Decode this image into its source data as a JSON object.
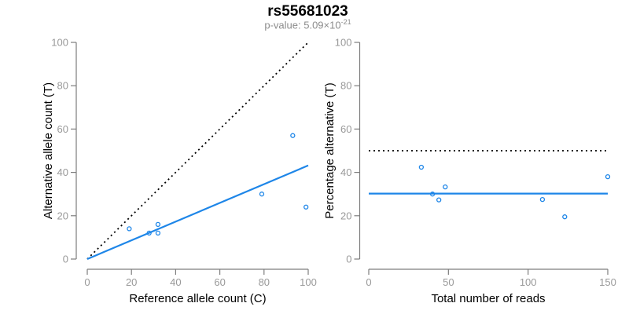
{
  "header": {
    "title": "rs55681023",
    "subtitle_prefix": "p-value: 5.09×10",
    "subtitle_exponent": "-21"
  },
  "colors": {
    "accent_blue": "#1e86e8",
    "dotted_black": "#000000",
    "axis_gray": "#7d7d7d",
    "tick_label_gray": "#999999",
    "text_black": "#000000",
    "subtitle_gray": "#8c8c8c",
    "background": "#ffffff"
  },
  "chart_data": [
    {
      "type": "scatter",
      "panel": "left",
      "xlabel": "Reference allele count (C)",
      "ylabel": "Alternative allele count (T)",
      "xlim": [
        0,
        100
      ],
      "ylim": [
        0,
        100
      ],
      "xticks": [
        0,
        20,
        40,
        60,
        80,
        100
      ],
      "yticks": [
        0,
        20,
        40,
        60,
        80,
        100
      ],
      "grid": false,
      "points": [
        {
          "x": 19,
          "y": 14
        },
        {
          "x": 28,
          "y": 12
        },
        {
          "x": 32,
          "y": 12
        },
        {
          "x": 32,
          "y": 16
        },
        {
          "x": 79,
          "y": 30
        },
        {
          "x": 93,
          "y": 57
        },
        {
          "x": 99,
          "y": 24
        }
      ],
      "lines": [
        {
          "name": "identity-line",
          "style": "dotted",
          "color_key": "dotted_black",
          "x1": 0,
          "y1": 0,
          "x2": 100,
          "y2": 100
        },
        {
          "name": "fit-line",
          "style": "solid",
          "color_key": "accent_blue",
          "x1": 0,
          "y1": 0,
          "x2": 100,
          "y2": 43.2
        }
      ]
    },
    {
      "type": "scatter",
      "panel": "right",
      "xlabel": "Total number of reads",
      "ylabel": "Percentage alternative (T)",
      "xlim": [
        0,
        150
      ],
      "ylim": [
        0,
        100
      ],
      "xticks": [
        0,
        50,
        100,
        150
      ],
      "yticks": [
        0,
        20,
        40,
        60,
        80,
        100
      ],
      "grid": false,
      "points": [
        {
          "x": 33,
          "y": 42.4
        },
        {
          "x": 40,
          "y": 30
        },
        {
          "x": 44,
          "y": 27.3
        },
        {
          "x": 48,
          "y": 33.3
        },
        {
          "x": 109,
          "y": 27.5
        },
        {
          "x": 123,
          "y": 19.5
        },
        {
          "x": 150,
          "y": 38
        }
      ],
      "lines": [
        {
          "name": "fifty-percent-line",
          "style": "dotted",
          "color_key": "dotted_black",
          "x1": 0,
          "y1": 50,
          "x2": 150,
          "y2": 50
        },
        {
          "name": "mean-percentage-line",
          "style": "solid",
          "color_key": "accent_blue",
          "x1": 0,
          "y1": 30.2,
          "x2": 150,
          "y2": 30.2
        }
      ]
    }
  ]
}
